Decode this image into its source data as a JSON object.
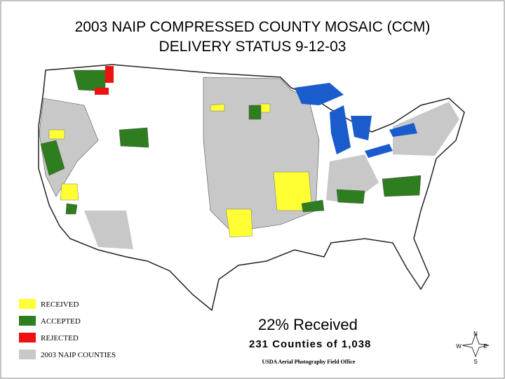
{
  "title": [
    "2003 NAIP  COMPRESSED COUNTY MOSAIC (CCM)",
    "DELIVERY STATUS  9-12-03"
  ],
  "legend": [
    {
      "label": "RECEIVED",
      "color": "#ffff33"
    },
    {
      "label": "ACCEPTED",
      "color": "#2e7d1e"
    },
    {
      "label": "REJECTED",
      "color": "#ee1111"
    },
    {
      "label": "2003 NAIP COUNTIES",
      "color": "#c8c8c8"
    }
  ],
  "summary": {
    "percent": "22% Received",
    "counts": "231 Counties of 1,038"
  },
  "credit": "USDA Aerial Photography Field Office",
  "compass": {
    "n": "N",
    "w": "W",
    "e": "E",
    "s": "S"
  }
}
